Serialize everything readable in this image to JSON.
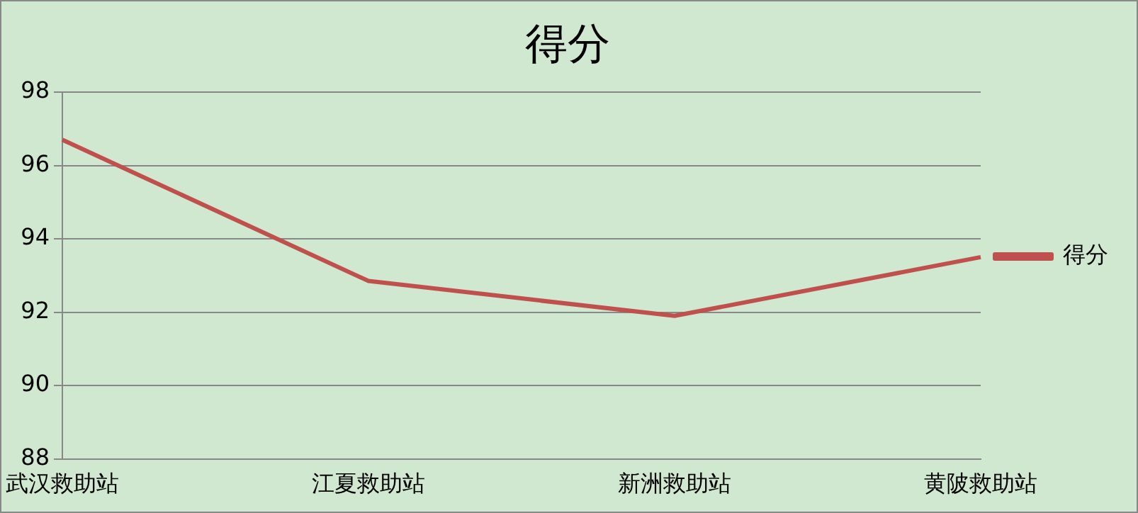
{
  "chart_data": {
    "type": "line",
    "title": "得分",
    "categories": [
      "武汉救助站",
      "江夏救助站",
      "新洲救助站",
      "黄陂救助站"
    ],
    "series": [
      {
        "name": "得分",
        "color": "#c0504d",
        "values": [
          96.7,
          92.85,
          91.9,
          93.5
        ]
      }
    ],
    "ylim": [
      88,
      98
    ],
    "yticks": [
      88,
      90,
      92,
      94,
      96,
      98
    ],
    "grid": "y",
    "legend": "right",
    "marker": "none",
    "line_style": "solid"
  }
}
